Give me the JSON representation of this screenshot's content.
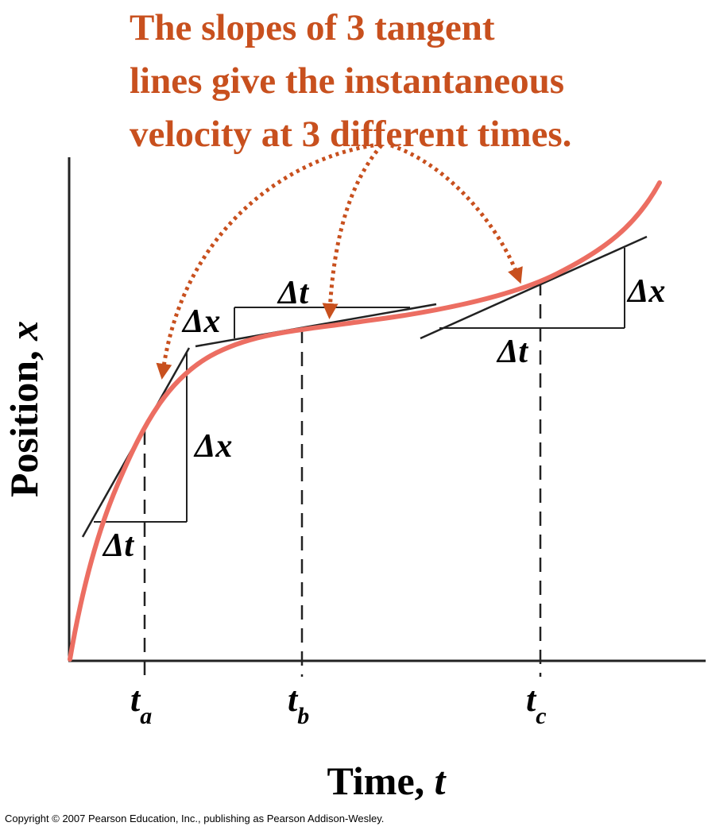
{
  "title_lines": [
    "The slopes of 3 tangent",
    "lines give the instantaneous",
    "velocity at 3 different times."
  ],
  "axis": {
    "y_label": "Position, ",
    "y_var": "x",
    "x_label": "Time, ",
    "x_var": "t"
  },
  "ticks": [
    {
      "base": "t",
      "sub": "a"
    },
    {
      "base": "t",
      "sub": "b"
    },
    {
      "base": "t",
      "sub": "c"
    }
  ],
  "triangles": [
    {
      "dt": "Δt",
      "dx": "Δx"
    },
    {
      "dt": "Δt",
      "dx": "Δx"
    },
    {
      "dt": "Δt",
      "dx": "Δx"
    }
  ],
  "copyright": "Copyright © 2007 Pearson Education, Inc., publishing as Pearson Addison-Wesley.",
  "colors": {
    "title": "#c8501e",
    "curve": "#ec6e62",
    "arrow": "#c8501e",
    "line": "#222222"
  }
}
